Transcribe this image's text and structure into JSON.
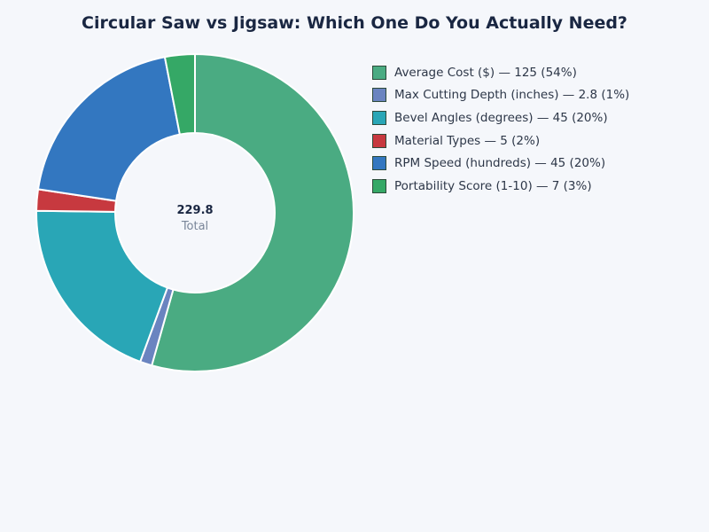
{
  "chart_data": {
    "type": "pie",
    "donut": true,
    "title": "Circular Saw vs Jigsaw: Which One Do You Actually Need?",
    "center_value": "229.8",
    "center_label": "Total",
    "legend_position": "right",
    "slices": [
      {
        "label": "Average Cost ($)",
        "value": 125,
        "percent": "54%",
        "color": "#4aab82",
        "legend": "Average Cost ($) — 125 (54%)"
      },
      {
        "label": "Max Cutting Depth (inches)",
        "value": 2.8,
        "percent": "1%",
        "color": "#6a84c0",
        "legend": "Max Cutting Depth (inches) — 2.8 (1%)"
      },
      {
        "label": "Bevel Angles (degrees)",
        "value": 45,
        "percent": "20%",
        "color": "#29a6b6",
        "legend": "Bevel Angles (degrees) — 45 (20%)"
      },
      {
        "label": "Material Types",
        "value": 5,
        "percent": "2%",
        "color": "#c7393f",
        "legend": "Material Types — 5 (2%)"
      },
      {
        "label": "RPM Speed (hundreds)",
        "value": 45,
        "percent": "20%",
        "color": "#3377c0",
        "legend": "RPM Speed (hundreds) — 45 (20%)"
      },
      {
        "label": "Portability Score (1-10)",
        "value": 7,
        "percent": "3%",
        "color": "#35a866",
        "legend": "Portability Score (1-10) — 7 (3%)"
      }
    ]
  }
}
